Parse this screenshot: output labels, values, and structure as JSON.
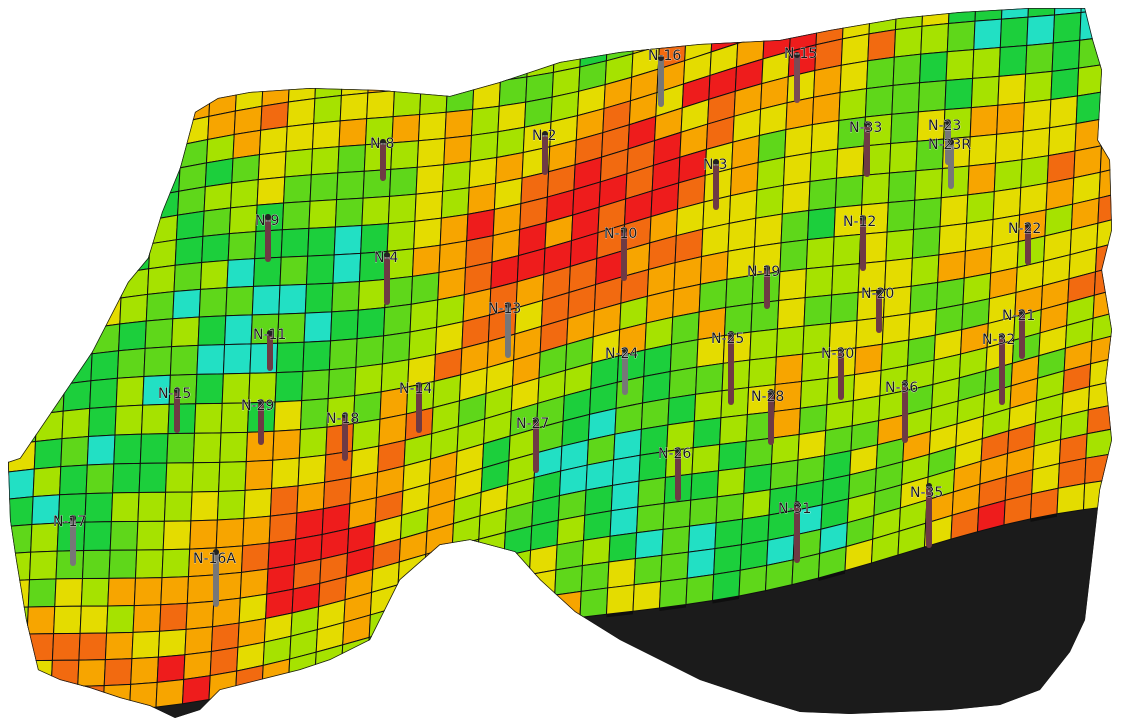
{
  "scene": {
    "palette": [
      "#ee1c1c",
      "#f26a10",
      "#f7a500",
      "#e4dc00",
      "#a6e200",
      "#5fd71a",
      "#1ccf3c",
      "#22e0c4"
    ],
    "wells": [
      {
        "name": "N-16",
        "color": "#777777"
      },
      {
        "name": "N-15",
        "color": "#7a4a55"
      },
      {
        "name": "N-8",
        "color": "#6e3a44"
      },
      {
        "name": "N-2",
        "color": "#6e3a44"
      },
      {
        "name": "N-3",
        "color": "#6e3a44"
      },
      {
        "name": "N-33",
        "color": "#6e3a44"
      },
      {
        "name": "N-23",
        "color": "#777777"
      },
      {
        "name": "N-23R",
        "color": "#777777"
      },
      {
        "name": "N-9",
        "color": "#6e3a44"
      },
      {
        "name": "N-10",
        "color": "#6e3a44"
      },
      {
        "name": "N-12",
        "color": "#6e3a44"
      },
      {
        "name": "N-22",
        "color": "#6e3a44"
      },
      {
        "name": "N-4",
        "color": "#6e3a44"
      },
      {
        "name": "N-19",
        "color": "#6e3a44"
      },
      {
        "name": "N-20",
        "color": "#6e3a44"
      },
      {
        "name": "N-13",
        "color": "#777777"
      },
      {
        "name": "N-21",
        "color": "#6e3a44"
      },
      {
        "name": "N-11",
        "color": "#6e3a44"
      },
      {
        "name": "N-25",
        "color": "#6e3a44"
      },
      {
        "name": "N-32",
        "color": "#6e3a44"
      },
      {
        "name": "N-24",
        "color": "#777777"
      },
      {
        "name": "N-30",
        "color": "#6e3a44"
      },
      {
        "name": "N-15",
        "color": "#6e3a44"
      },
      {
        "name": "N-14",
        "color": "#6e3a44"
      },
      {
        "name": "N-36",
        "color": "#6e3a44"
      },
      {
        "name": "N-28",
        "color": "#6e3a44"
      },
      {
        "name": "N-29",
        "color": "#6e3a44"
      },
      {
        "name": "N-18",
        "color": "#6e3a44"
      },
      {
        "name": "N-27",
        "color": "#6e3a44"
      },
      {
        "name": "N-26",
        "color": "#6e3a44"
      },
      {
        "name": "N-35",
        "color": "#6e3a44"
      },
      {
        "name": "N-17",
        "color": "#777777"
      },
      {
        "name": "N-31",
        "color": "#6e3a44"
      },
      {
        "name": "N-16A",
        "color": "#777777"
      }
    ]
  }
}
